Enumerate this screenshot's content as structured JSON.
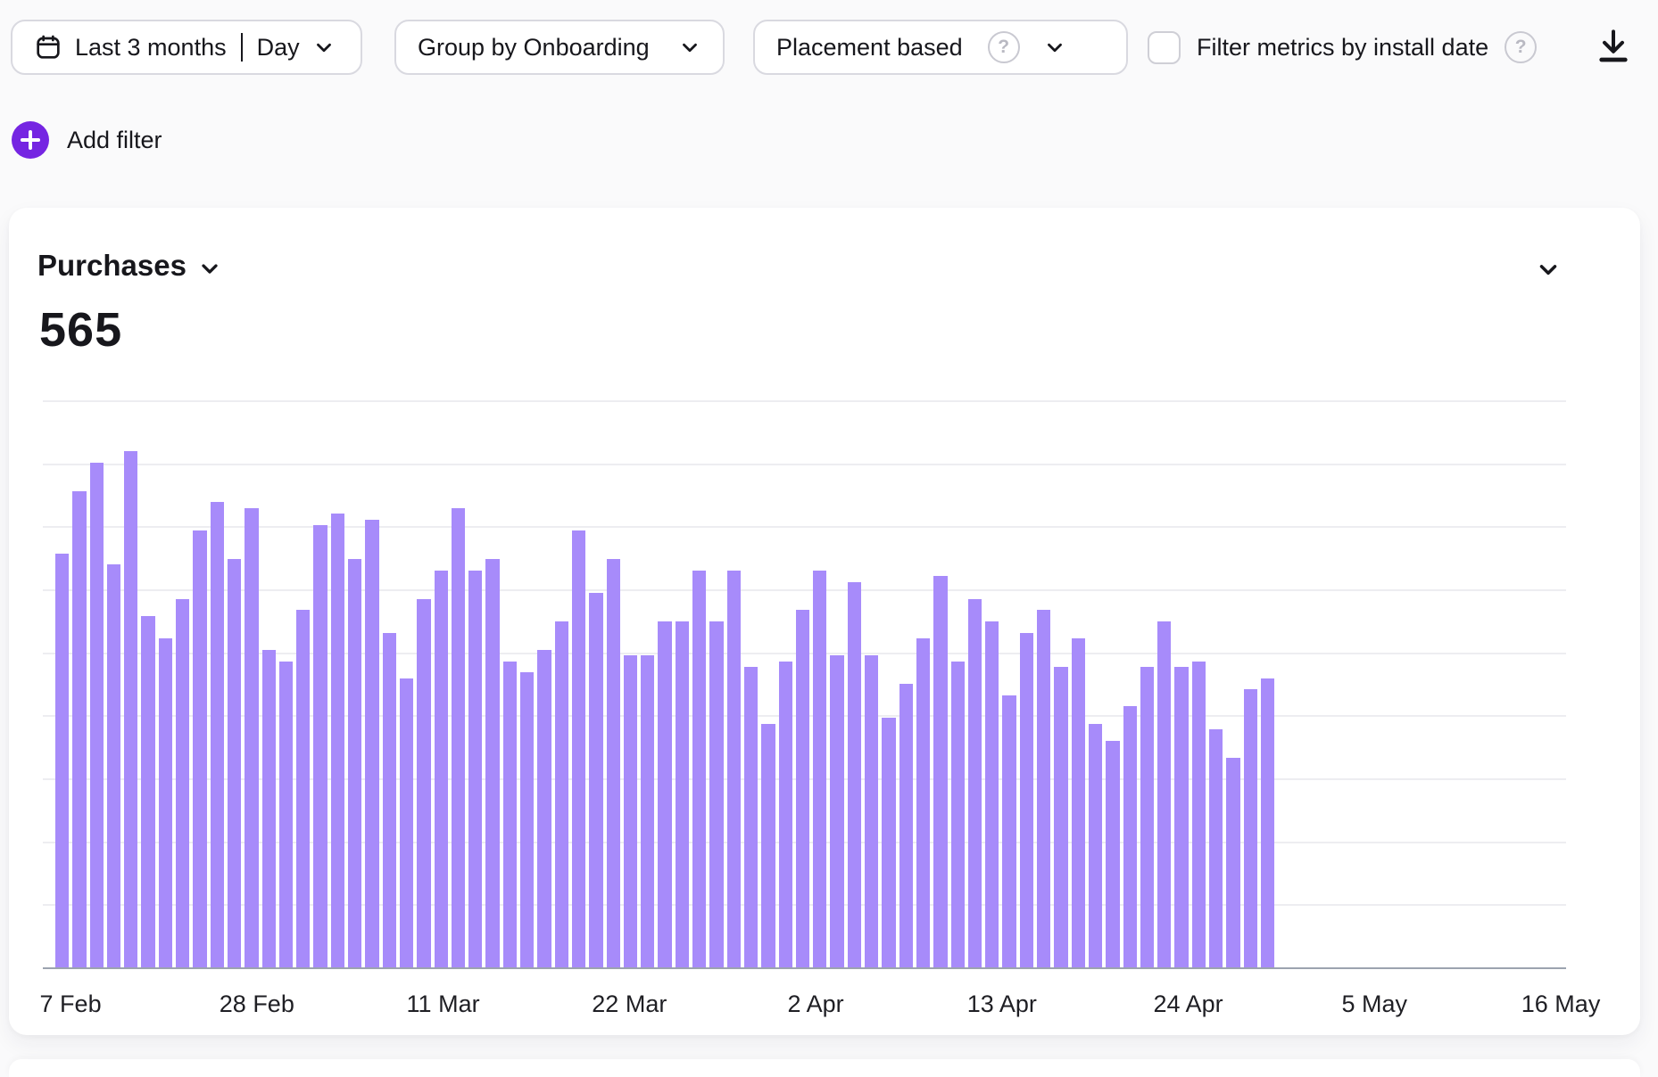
{
  "toolbar": {
    "date_range_button": {
      "range_label": "Last 3 months",
      "granularity_label": "Day"
    },
    "group_by_button": {
      "label": "Group by Onboarding"
    },
    "placement_button": {
      "label": "Placement based",
      "help": "?"
    },
    "install_date_checkbox": {
      "label": "Filter metrics by install date",
      "checked": false,
      "help": "?"
    }
  },
  "add_filter": {
    "label": "Add filter"
  },
  "card": {
    "metric_label": "Purchases",
    "metric_value": "565"
  },
  "chart_data": {
    "type": "bar",
    "title": "Purchases",
    "total_label": "565",
    "x_tick_labels": [
      "7 Feb",
      "28 Feb",
      "11 Mar",
      "22 Mar",
      "2 Apr",
      "13 Apr",
      "24 Apr",
      "5 May",
      "16 May"
    ],
    "x_axis_note": "daily bars from 7 Feb, data ends late Apr; 5 May and 16 May have no bars",
    "y_axis_labels_visible": false,
    "grid": true,
    "gridline_count": 9,
    "legend": "none",
    "values_pct_of_plot_height": [
      73,
      84,
      89,
      71,
      91,
      62,
      58,
      65,
      77,
      82,
      72,
      81,
      56,
      54,
      63,
      78,
      80,
      72,
      79,
      59,
      51,
      65,
      70,
      81,
      70,
      72,
      54,
      52,
      56,
      61,
      77,
      66,
      72,
      55,
      55,
      61,
      61,
      70,
      61,
      70,
      53,
      43,
      54,
      63,
      70,
      55,
      68,
      55,
      44,
      50,
      58,
      69,
      54,
      65,
      61,
      48,
      59,
      63,
      53,
      58,
      43,
      40,
      46,
      53,
      61,
      53,
      54,
      42,
      37,
      49,
      51
    ]
  },
  "colors": {
    "bar": "#a78bfa",
    "accent_purple": "#7525e2",
    "gridline": "#ededf1",
    "axis": "#9ca3af",
    "border": "#d9d9e0",
    "text": "#17171c"
  }
}
